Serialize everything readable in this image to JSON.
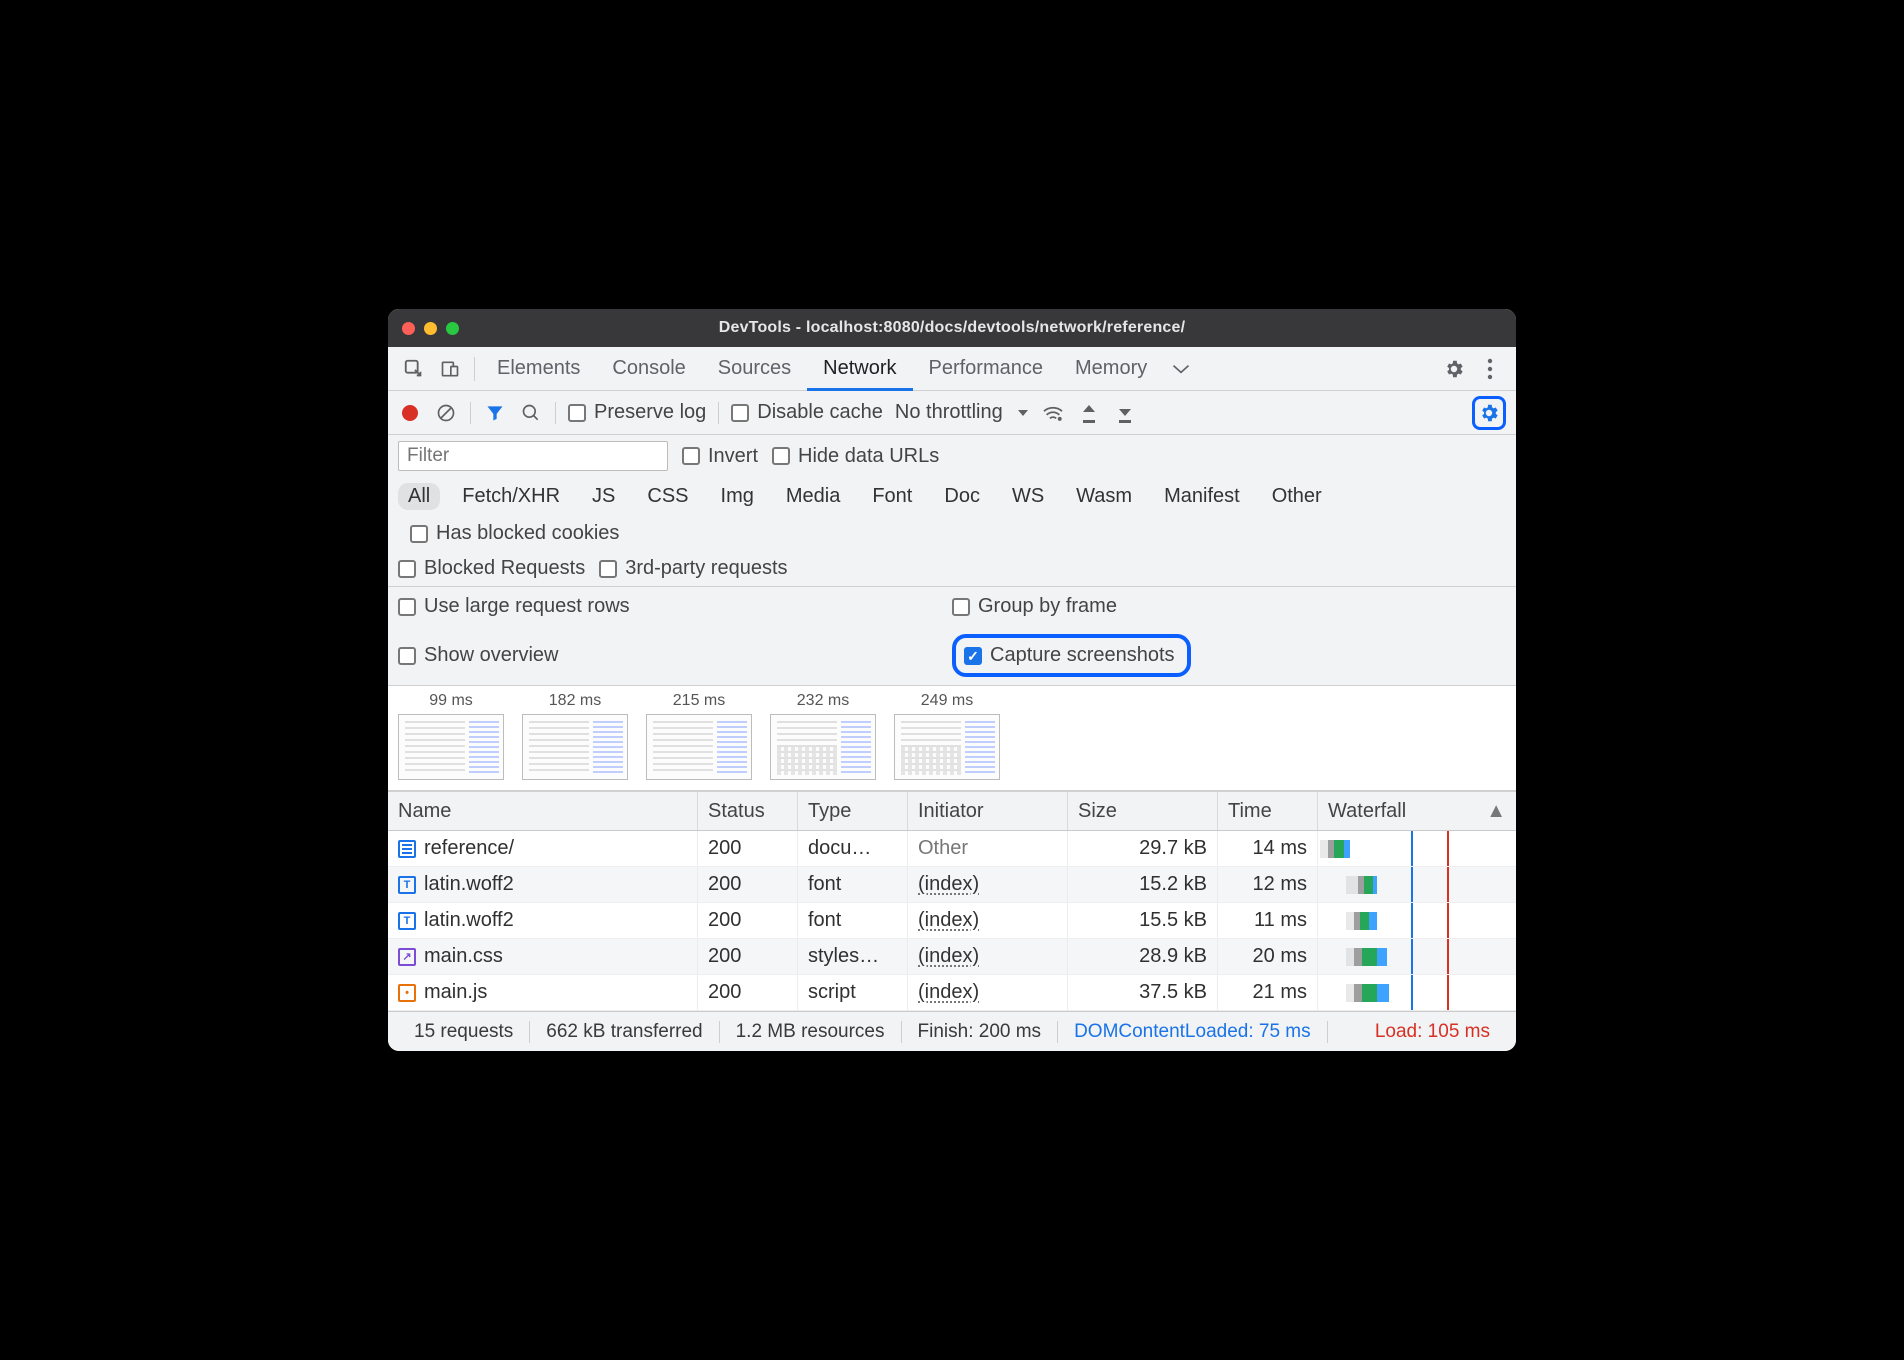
{
  "window": {
    "title": "DevTools - localhost:8080/docs/devtools/network/reference/"
  },
  "tabs": [
    "Elements",
    "Console",
    "Sources",
    "Network",
    "Performance",
    "Memory"
  ],
  "active_tab": "Network",
  "toolbar": {
    "preserve_log": "Preserve log",
    "disable_cache": "Disable cache",
    "throttling": "No throttling"
  },
  "filter": {
    "placeholder": "Filter",
    "invert": "Invert",
    "hide_data_urls": "Hide data URLs",
    "types": [
      "All",
      "Fetch/XHR",
      "JS",
      "CSS",
      "Img",
      "Media",
      "Font",
      "Doc",
      "WS",
      "Wasm",
      "Manifest",
      "Other"
    ],
    "has_blocked": "Has blocked cookies",
    "blocked_requests": "Blocked Requests",
    "third_party": "3rd-party requests"
  },
  "settings": {
    "large_rows": "Use large request rows",
    "group_by_frame": "Group by frame",
    "show_overview": "Show overview",
    "capture_screenshots": "Capture screenshots"
  },
  "filmstrip": [
    "99 ms",
    "182 ms",
    "215 ms",
    "232 ms",
    "249 ms"
  ],
  "columns": {
    "name": "Name",
    "status": "Status",
    "type": "Type",
    "initiator": "Initiator",
    "size": "Size",
    "time": "Time",
    "waterfall": "Waterfall"
  },
  "waterfall": {
    "colors": {
      "queue": "#bfbfbf",
      "stalled": "#9e9e9e",
      "ttfb": "#26a658",
      "download": "#3da3ff",
      "dom": "#1a73e8",
      "load": "#d93025"
    },
    "dom_line_pct": 47,
    "load_line_pct": 65,
    "bars": [
      [
        {
          "l": 1,
          "w": 4,
          "c": "queue",
          "f": true
        },
        {
          "l": 5,
          "w": 3,
          "c": "stalled"
        },
        {
          "l": 8,
          "w": 5,
          "c": "ttfb"
        },
        {
          "l": 13,
          "w": 3,
          "c": "download"
        }
      ],
      [
        {
          "l": 14,
          "w": 6,
          "c": "queue",
          "f": true
        },
        {
          "l": 20,
          "w": 3,
          "c": "stalled"
        },
        {
          "l": 23,
          "w": 5,
          "c": "ttfb"
        },
        {
          "l": 28,
          "w": 2,
          "c": "download"
        }
      ],
      [
        {
          "l": 14,
          "w": 4,
          "c": "queue",
          "f": true
        },
        {
          "l": 18,
          "w": 3,
          "c": "stalled"
        },
        {
          "l": 21,
          "w": 5,
          "c": "ttfb"
        },
        {
          "l": 26,
          "w": 4,
          "c": "download"
        }
      ],
      [
        {
          "l": 14,
          "w": 4,
          "c": "queue",
          "f": true
        },
        {
          "l": 18,
          "w": 4,
          "c": "stalled"
        },
        {
          "l": 22,
          "w": 8,
          "c": "ttfb"
        },
        {
          "l": 30,
          "w": 5,
          "c": "download"
        }
      ],
      [
        {
          "l": 14,
          "w": 4,
          "c": "queue",
          "f": true
        },
        {
          "l": 18,
          "w": 4,
          "c": "stalled"
        },
        {
          "l": 22,
          "w": 8,
          "c": "ttfb"
        },
        {
          "l": 30,
          "w": 6,
          "c": "download"
        }
      ]
    ]
  },
  "requests": [
    {
      "icon": "doc",
      "glyph": "bars",
      "name": "reference/",
      "status": "200",
      "type": "docu…",
      "initiator": "Other",
      "initiator_plain": true,
      "size": "29.7 kB",
      "time": "14 ms"
    },
    {
      "icon": "font",
      "glyph": "T",
      "name": "latin.woff2",
      "status": "200",
      "type": "font",
      "initiator": "(index)",
      "size": "15.2 kB",
      "time": "12 ms"
    },
    {
      "icon": "font",
      "glyph": "T",
      "name": "latin.woff2",
      "status": "200",
      "type": "font",
      "initiator": "(index)",
      "size": "15.5 kB",
      "time": "11 ms"
    },
    {
      "icon": "css",
      "glyph": "↗",
      "name": "main.css",
      "status": "200",
      "type": "styles…",
      "initiator": "(index)",
      "size": "28.9 kB",
      "time": "20 ms"
    },
    {
      "icon": "js",
      "glyph": "•",
      "name": "main.js",
      "status": "200",
      "type": "script",
      "initiator": "(index)",
      "size": "37.5 kB",
      "time": "21 ms"
    }
  ],
  "status": {
    "requests": "15 requests",
    "transferred": "662 kB transferred",
    "resources": "1.2 MB resources",
    "finish": "Finish: 200 ms",
    "dcl": "DOMContentLoaded: 75 ms",
    "load": "Load: 105 ms"
  }
}
